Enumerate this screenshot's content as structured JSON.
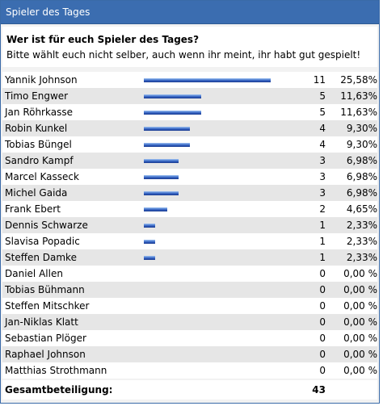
{
  "title": "Spieler des Tages",
  "question": "Wer ist für euch Spieler des Tages?",
  "hint": "Bitte wählt euch nicht selber, auch wenn ihr meint, ihr habt gut gespielt!",
  "bar_max_fraction": 0.2558,
  "rows": [
    {
      "name": "Yannik Johnson",
      "votes": "11",
      "pct": "25,58%",
      "share": 0.2558
    },
    {
      "name": "Timo Engwer",
      "votes": "5",
      "pct": "11,63%",
      "share": 0.1163
    },
    {
      "name": "Jan Röhrkasse",
      "votes": "5",
      "pct": "11,63%",
      "share": 0.1163
    },
    {
      "name": "Robin Kunkel",
      "votes": "4",
      "pct": "9,30%",
      "share": 0.093
    },
    {
      "name": "Tobias Büngel",
      "votes": "4",
      "pct": "9,30%",
      "share": 0.093
    },
    {
      "name": "Sandro Kampf",
      "votes": "3",
      "pct": "6,98%",
      "share": 0.0698
    },
    {
      "name": "Marcel Kasseck",
      "votes": "3",
      "pct": "6,98%",
      "share": 0.0698
    },
    {
      "name": "Michel Gaida",
      "votes": "3",
      "pct": "6,98%",
      "share": 0.0698
    },
    {
      "name": "Frank Ebert",
      "votes": "2",
      "pct": "4,65%",
      "share": 0.0465
    },
    {
      "name": "Dennis Schwarze",
      "votes": "1",
      "pct": "2,33%",
      "share": 0.0233
    },
    {
      "name": "Slavisa Popadic",
      "votes": "1",
      "pct": "2,33%",
      "share": 0.0233
    },
    {
      "name": "Steffen Damke",
      "votes": "1",
      "pct": "2,33%",
      "share": 0.0233
    },
    {
      "name": "Daniel Allen",
      "votes": "0",
      "pct": "0,00 %",
      "share": 0
    },
    {
      "name": "Tobias Bühmann",
      "votes": "0",
      "pct": "0,00 %",
      "share": 0
    },
    {
      "name": "Steffen Mitschker",
      "votes": "0",
      "pct": "0,00 %",
      "share": 0
    },
    {
      "name": "Jan-Niklas Klatt",
      "votes": "0",
      "pct": "0,00 %",
      "share": 0
    },
    {
      "name": "Sebastian Plöger",
      "votes": "0",
      "pct": "0,00 %",
      "share": 0
    },
    {
      "name": "Raphael Johnson",
      "votes": "0",
      "pct": "0,00 %",
      "share": 0
    },
    {
      "name": "Matthias Strothmann",
      "votes": "0",
      "pct": "0,00 %",
      "share": 0
    }
  ],
  "total": {
    "label": "Gesamtbeteiligung:",
    "value": "43"
  },
  "colors": {
    "header": "#3b6db0",
    "bar": "#2a56b8",
    "row_alt": "#e6e6e6"
  }
}
